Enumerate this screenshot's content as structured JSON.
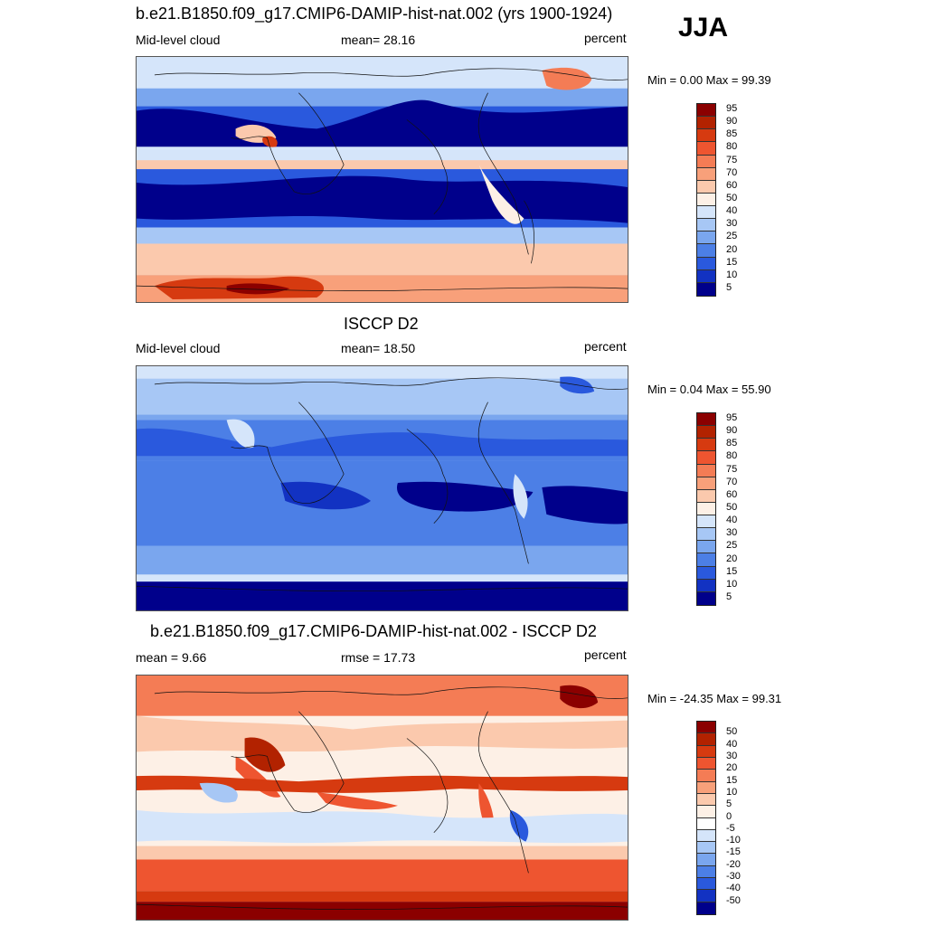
{
  "season": "JJA",
  "panels": [
    {
      "title": "b.e21.B1850.f09_g17.CMIP6-DAMIP-hist-nat.002 (yrs 1900-1924)",
      "left_label": "Mid-level cloud",
      "center_label": "mean=  28.16",
      "right_label": "percent",
      "minmax": "Min =   0.00 Max =  99.39",
      "colorbar": {
        "levels": [
          "95",
          "90",
          "85",
          "80",
          "75",
          "70",
          "60",
          "50",
          "40",
          "30",
          "25",
          "20",
          "15",
          "10",
          "5"
        ],
        "colors": [
          "#8b0000",
          "#b22200",
          "#d63a10",
          "#ee5530",
          "#f47c55",
          "#f8a07a",
          "#fbc9ad",
          "#fdf0e6",
          "#d5e5fa",
          "#a7c7f5",
          "#7aa6ee",
          "#4c7fe6",
          "#2a59dd",
          "#1232c2",
          "#00008b"
        ]
      }
    },
    {
      "title": "ISCCP D2",
      "left_label": "Mid-level cloud",
      "center_label": "mean=  18.50",
      "right_label": "percent",
      "minmax": "Min =   0.04 Max =  55.90",
      "colorbar": {
        "levels": [
          "95",
          "90",
          "85",
          "80",
          "75",
          "70",
          "60",
          "50",
          "40",
          "30",
          "25",
          "20",
          "15",
          "10",
          "5"
        ],
        "colors": [
          "#8b0000",
          "#b22200",
          "#d63a10",
          "#ee5530",
          "#f47c55",
          "#f8a07a",
          "#fbc9ad",
          "#fdf0e6",
          "#d5e5fa",
          "#a7c7f5",
          "#7aa6ee",
          "#4c7fe6",
          "#2a59dd",
          "#1232c2",
          "#00008b"
        ]
      }
    },
    {
      "title": "b.e21.B1850.f09_g17.CMIP6-DAMIP-hist-nat.002 - ISCCP D2",
      "left_label": "mean =   9.66",
      "center_label": "rmse =  17.73",
      "right_label": "percent",
      "minmax": "Min = -24.35 Max =  99.31",
      "colorbar": {
        "levels": [
          "50",
          "40",
          "30",
          "20",
          "15",
          "10",
          "5",
          "0",
          "-5",
          "-10",
          "-15",
          "-20",
          "-30",
          "-40",
          "-50"
        ],
        "colors": [
          "#8b0000",
          "#b22200",
          "#d63a10",
          "#ee5530",
          "#f47c55",
          "#f8a07a",
          "#fbc9ad",
          "#fdf0e6",
          "#ffffff",
          "#d5e5fa",
          "#a7c7f5",
          "#7aa6ee",
          "#4c7fe6",
          "#2a59dd",
          "#1232c2",
          "#00008b"
        ]
      }
    }
  ]
}
